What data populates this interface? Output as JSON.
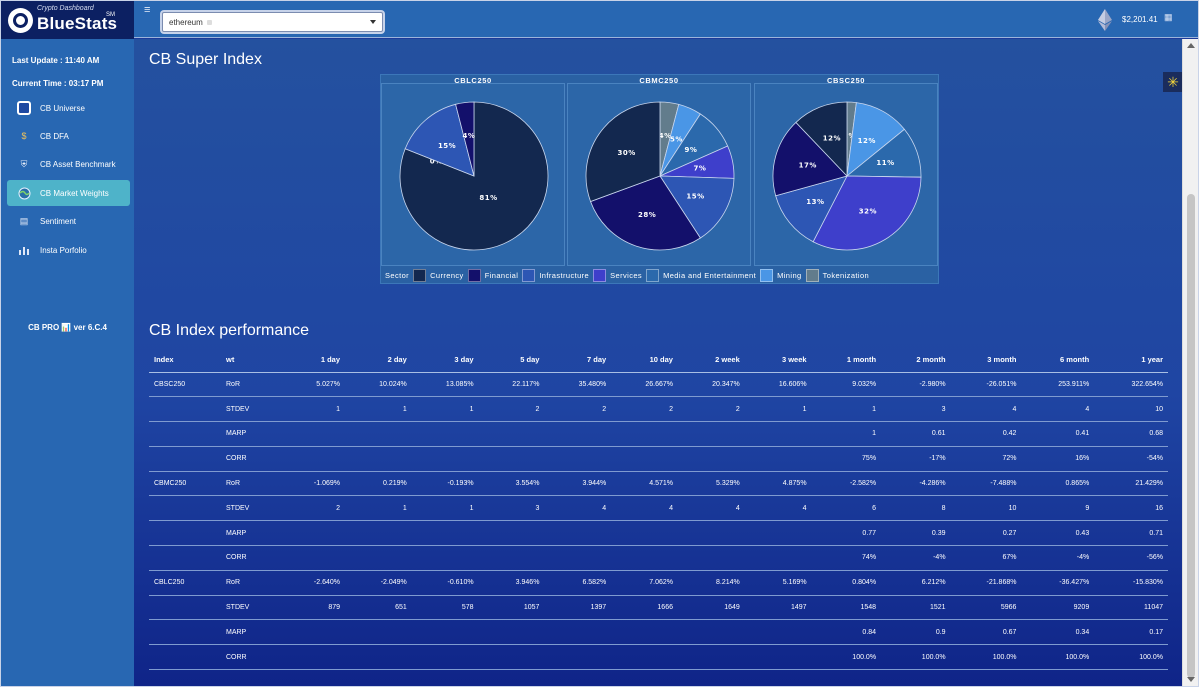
{
  "brand": {
    "subtitle": "Crypto Dashboard",
    "name": "BlueStats",
    "mark": "SM"
  },
  "sidebar": {
    "last_update": "Last Update : 11:40 AM",
    "current_time": "Current Time : 03:17 PM",
    "items": [
      {
        "label": "CB Universe",
        "icon": "cube-icon"
      },
      {
        "label": "CB DFA",
        "icon": "currency-icon"
      },
      {
        "label": "CB Asset Benchmark",
        "icon": "shield-icon"
      },
      {
        "label": "CB Market Weights",
        "icon": "globe-icon"
      },
      {
        "label": "Sentiment",
        "icon": "document-icon"
      },
      {
        "label": "Insta Porfolio",
        "icon": "bar-chart-icon"
      }
    ],
    "version": "CB PRO 📊 ver 6.C.4"
  },
  "topbar": {
    "menu_glyph": "≡",
    "select_value": "ethereum",
    "price": "$2,201.41",
    "grid_glyph": "▦"
  },
  "colors": {
    "Currency": "#13284f",
    "Financial": "#13106b",
    "Infrastructure": "#2d56b4",
    "Services": "#3e3fcb",
    "Media and Entertainment": "#2b69ac",
    "Mining": "#4a96e6",
    "Tokenization": "#627c8c"
  },
  "section_titles": {
    "super_index": "CB Super Index",
    "performance": "CB Index performance"
  },
  "chart_data": [
    {
      "type": "pie",
      "title": "CBLC250",
      "slices": [
        {
          "label": "Currency",
          "value": 81
        },
        {
          "label": "Tokenization",
          "value": 0
        },
        {
          "label": "Infrastructure",
          "value": 15
        },
        {
          "label": "Financial",
          "value": 4
        }
      ]
    },
    {
      "type": "pie",
      "title": "CBMC250",
      "slices": [
        {
          "label": "Tokenization",
          "value": 4
        },
        {
          "label": "Mining",
          "value": 5
        },
        {
          "label": "Media and Entertainment",
          "value": 9
        },
        {
          "label": "Services",
          "value": 7
        },
        {
          "label": "Infrastructure",
          "value": 15
        },
        {
          "label": "Financial",
          "value": 28
        },
        {
          "label": "Currency",
          "value": 30
        }
      ]
    },
    {
      "type": "pie",
      "title": "CBSC250",
      "slices": [
        {
          "label": "Tokenization",
          "value": 2
        },
        {
          "label": "Mining",
          "value": 12
        },
        {
          "label": "Media and Entertainment",
          "value": 11
        },
        {
          "label": "Services",
          "value": 32
        },
        {
          "label": "Infrastructure",
          "value": 13
        },
        {
          "label": "Financial",
          "value": 17
        },
        {
          "label": "Currency",
          "value": 12
        }
      ]
    }
  ],
  "legend": {
    "title": "Sector",
    "entries": [
      "Currency",
      "Financial",
      "Infrastructure",
      "Services",
      "Media and Entertainment",
      "Mining",
      "Tokenization"
    ]
  },
  "table": {
    "headers": [
      "Index",
      "wt",
      "1 day",
      "2 day",
      "3 day",
      "5 day",
      "7 day",
      "10 day",
      "2 week",
      "3 week",
      "1 month",
      "2 month",
      "3 month",
      "6 month",
      "1 year"
    ],
    "rows": [
      [
        "CBSC250",
        "RoR",
        "5.027%",
        "10.024%",
        "13.085%",
        "22.117%",
        "35.480%",
        "26.667%",
        "20.347%",
        "16.606%",
        "9.032%",
        "-2.980%",
        "-26.051%",
        "253.911%",
        "322.654%"
      ],
      [
        "",
        "STDEV",
        "1",
        "1",
        "1",
        "2",
        "2",
        "2",
        "2",
        "1",
        "1",
        "3",
        "4",
        "4",
        "10"
      ],
      [
        "",
        "MARP",
        "",
        "",
        "",
        "",
        "",
        "",
        "",
        "",
        "1",
        "0.61",
        "0.42",
        "0.41",
        "0.68"
      ],
      [
        "",
        "CORR",
        "",
        "",
        "",
        "",
        "",
        "",
        "",
        "",
        "75%",
        "-17%",
        "72%",
        "16%",
        "-54%"
      ],
      [
        "CBMC250",
        "RoR",
        "-1.069%",
        "0.219%",
        "-0.193%",
        "3.554%",
        "3.944%",
        "4.571%",
        "5.329%",
        "4.875%",
        "-2.582%",
        "-4.286%",
        "-7.488%",
        "0.865%",
        "21.429%"
      ],
      [
        "",
        "STDEV",
        "2",
        "1",
        "1",
        "3",
        "4",
        "4",
        "4",
        "4",
        "6",
        "8",
        "10",
        "9",
        "16"
      ],
      [
        "",
        "MARP",
        "",
        "",
        "",
        "",
        "",
        "",
        "",
        "",
        "0.77",
        "0.39",
        "0.27",
        "0.43",
        "0.71"
      ],
      [
        "",
        "CORR",
        "",
        "",
        "",
        "",
        "",
        "",
        "",
        "",
        "74%",
        "-4%",
        "67%",
        "-4%",
        "-56%"
      ],
      [
        "CBLC250",
        "RoR",
        "-2.640%",
        "-2.049%",
        "-0.610%",
        "3.946%",
        "6.582%",
        "7.062%",
        "8.214%",
        "5.169%",
        "0.804%",
        "6.212%",
        "-21.868%",
        "-36.427%",
        "-15.830%"
      ],
      [
        "",
        "STDEV",
        "879",
        "651",
        "578",
        "1057",
        "1397",
        "1666",
        "1649",
        "1497",
        "1548",
        "1521",
        "5966",
        "9209",
        "11047"
      ],
      [
        "",
        "MARP",
        "",
        "",
        "",
        "",
        "",
        "",
        "",
        "",
        "0.84",
        "0.9",
        "0.67",
        "0.34",
        "0.17"
      ],
      [
        "",
        "CORR",
        "",
        "",
        "",
        "",
        "",
        "",
        "",
        "",
        "100.0%",
        "100.0%",
        "100.0%",
        "100.0%",
        "100.0%"
      ]
    ]
  }
}
